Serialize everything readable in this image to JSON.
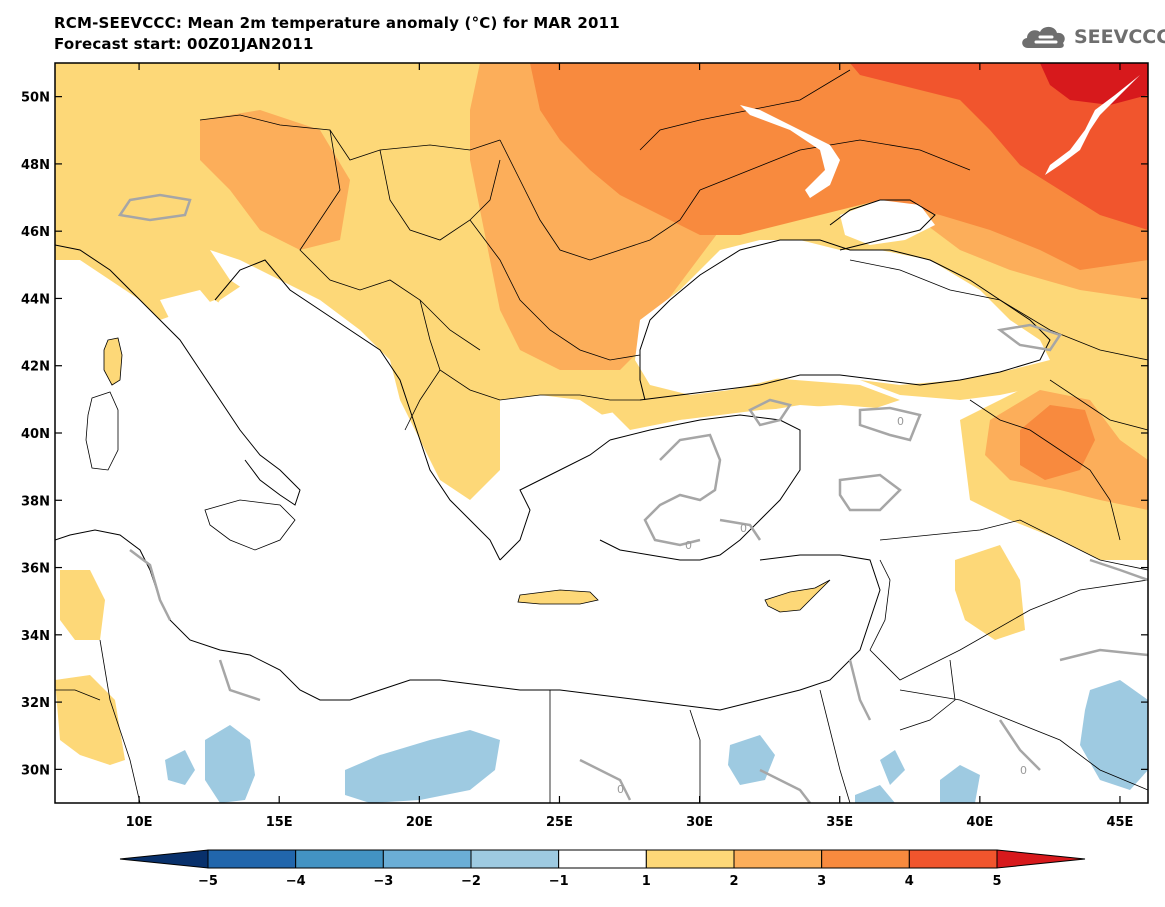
{
  "title": {
    "line1": "RCM-SEEVCCC: Mean 2m temperature anomaly (°C) for MAR 2011",
    "line2": "Forecast start: 00Z01JAN2011"
  },
  "logo": {
    "text": "SEEVCCC",
    "icon": "cloud-icon"
  },
  "map": {
    "lon_range": [
      7,
      46
    ],
    "lat_range": [
      29,
      51
    ],
    "lat_ticks": [
      "50N",
      "48N",
      "46N",
      "44N",
      "42N",
      "40N",
      "38N",
      "36N",
      "34N",
      "32N",
      "30N"
    ],
    "lon_ticks": [
      "10E",
      "15E",
      "20E",
      "25E",
      "30E",
      "35E",
      "40E",
      "45E"
    ],
    "contour_label": "0",
    "colors": {
      "land_white": "#ffffff",
      "coast": "#000000",
      "contour": "#a6a6a6"
    }
  },
  "colorbar": {
    "labels": [
      "−5",
      "−4",
      "−3",
      "−2",
      "−1",
      "1",
      "2",
      "3",
      "4",
      "5"
    ],
    "colors": [
      "#08306b",
      "#2166ac",
      "#4393c3",
      "#6baed6",
      "#9ecae1",
      "#ffffff",
      "#fdd878",
      "#fcae5a",
      "#f88a3e",
      "#f1552d",
      "#d7191c"
    ]
  }
}
